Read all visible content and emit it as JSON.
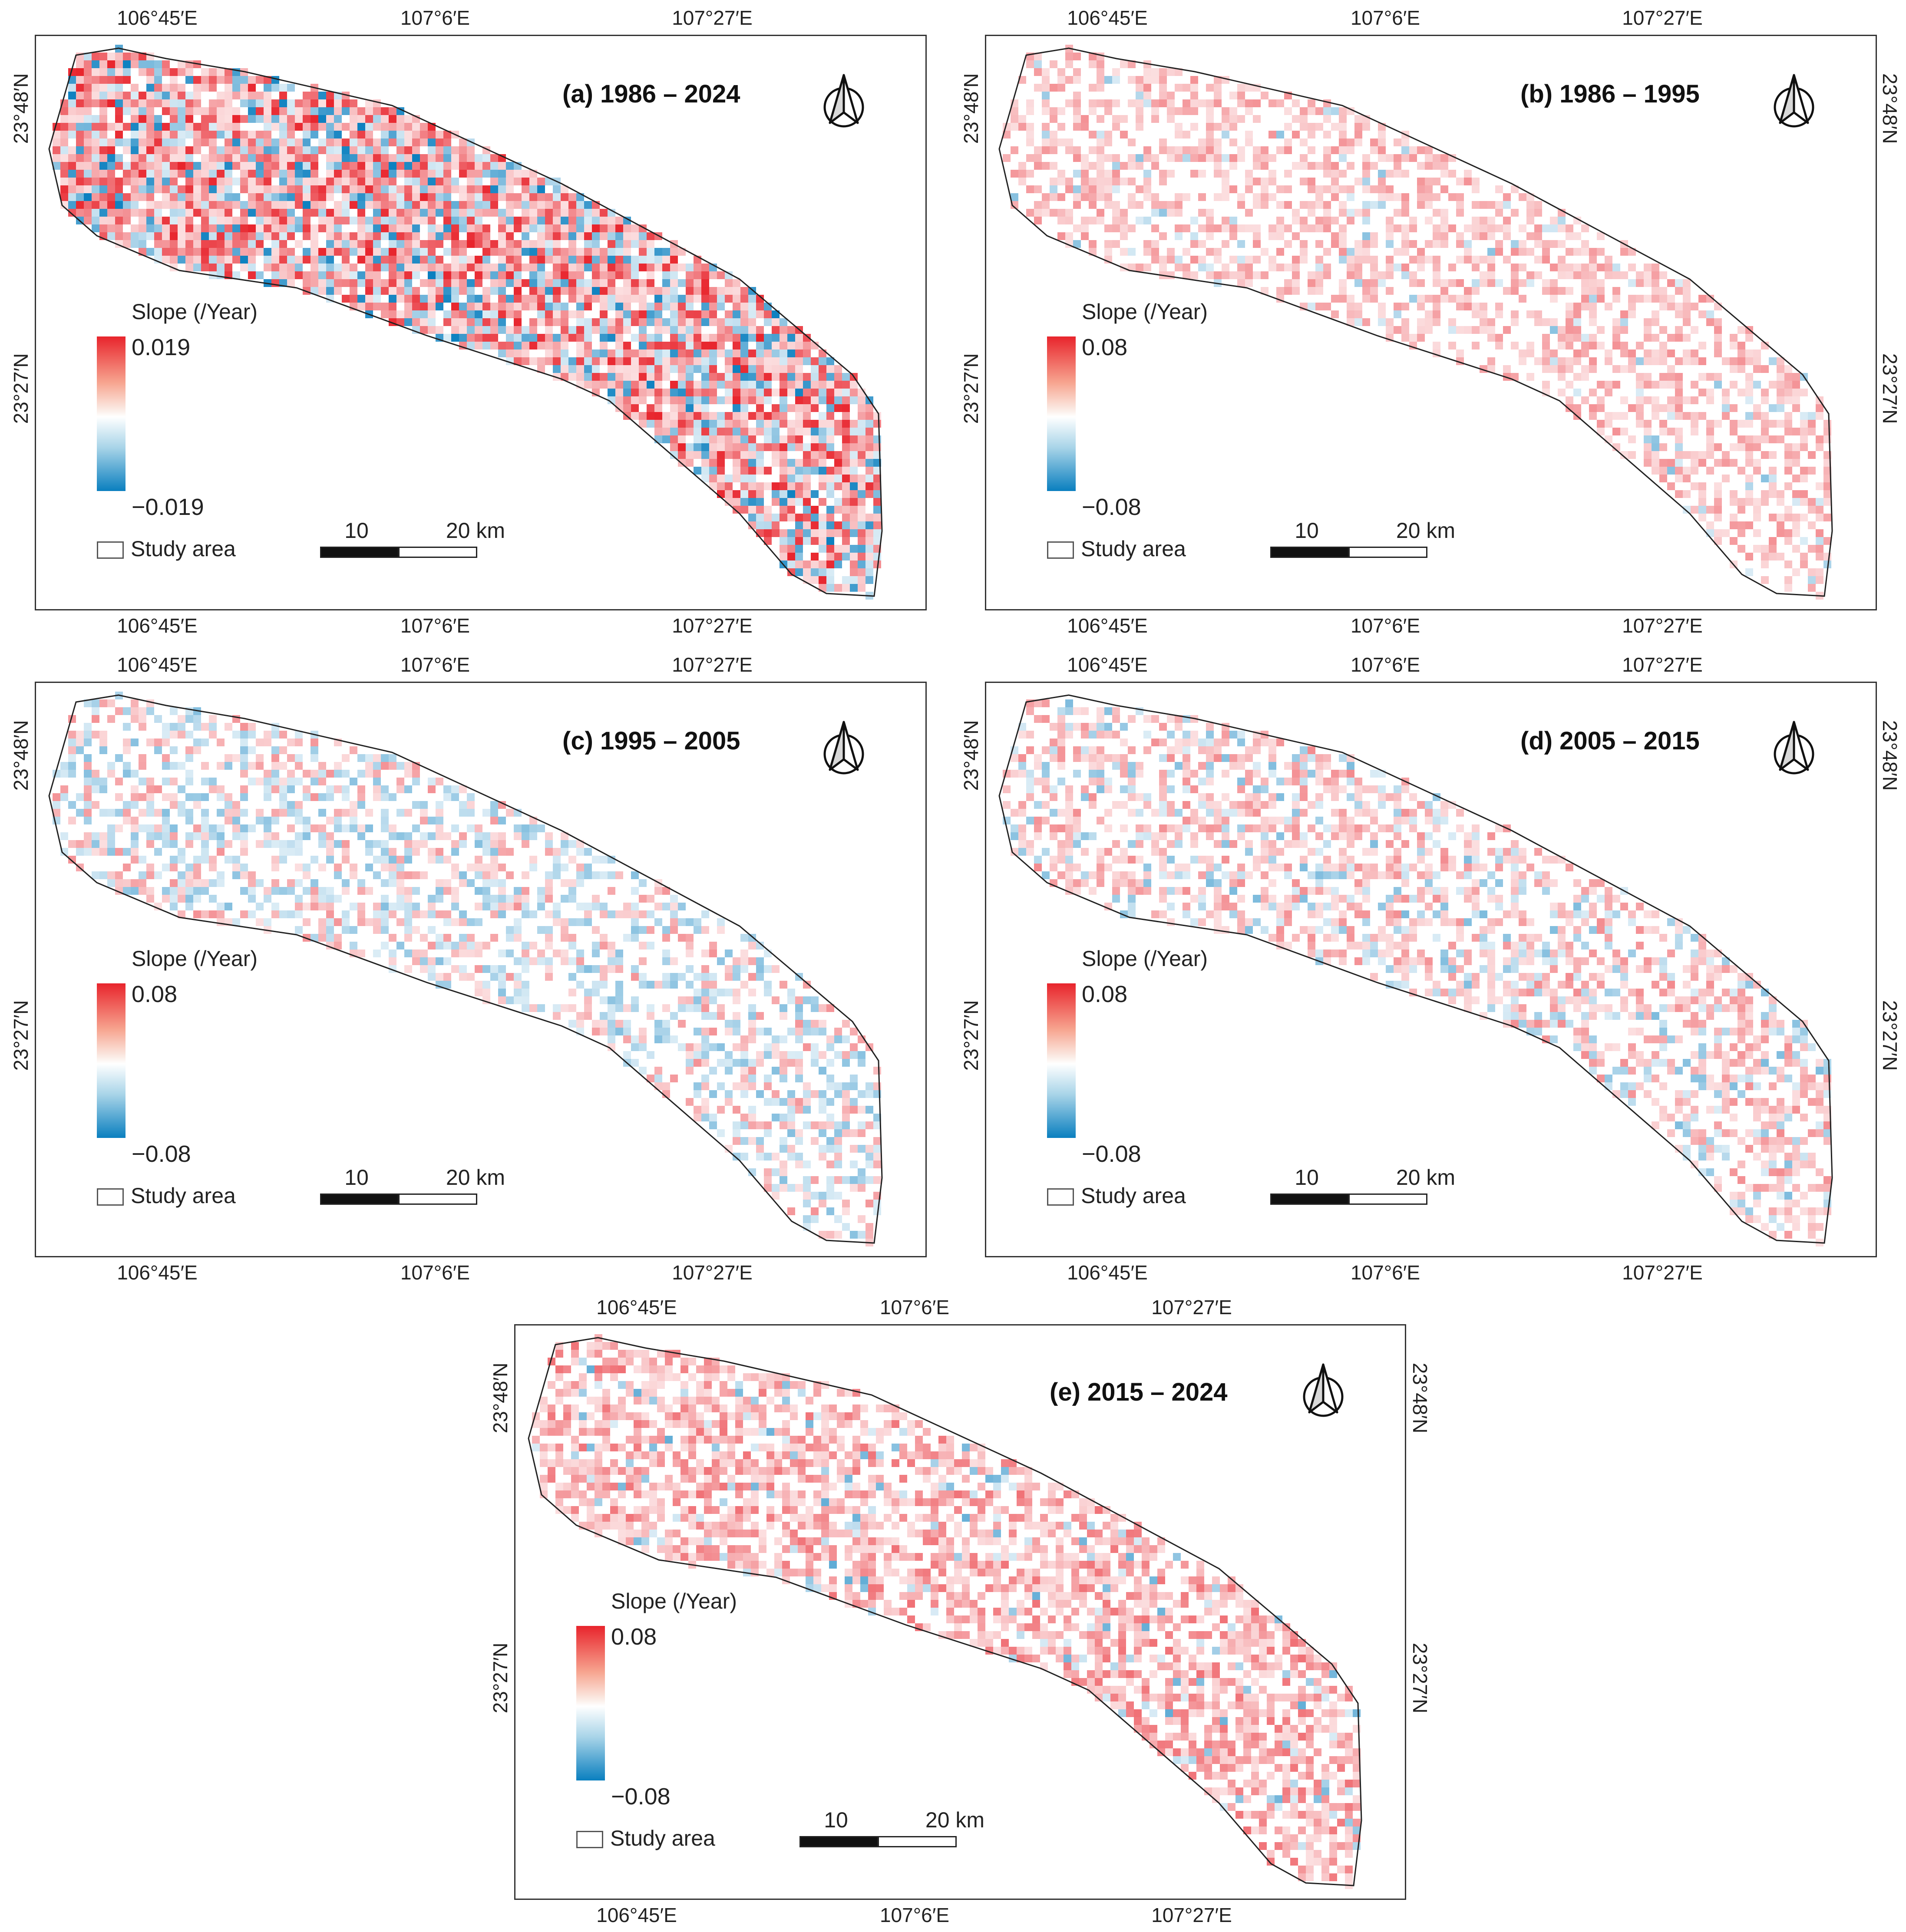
{
  "legend": {
    "title": "Slope (/Year)",
    "study_area_label": "Study area",
    "colors": {
      "high": "#e8242c",
      "mid": "#ffffff",
      "low": "#0a7fbf",
      "outline": "#222222"
    }
  },
  "scale_bar": {
    "mid_label": "10",
    "end_label": "20 km"
  },
  "axes": {
    "lon_labels": [
      "106°45′E",
      "107°6′E",
      "107°27′E"
    ],
    "lat_labels": [
      "23°48′N",
      "23°27′N"
    ]
  },
  "panels": [
    {
      "id": "a",
      "title": "(a) 1986 – 2024",
      "max_label": "0.019",
      "min_label": "−0.019",
      "intensity": 0.85,
      "neg_share": 0.28,
      "north_icon": "north-arrow-icon"
    },
    {
      "id": "b",
      "title": "(b) 1986 – 1995",
      "max_label": "0.08",
      "min_label": "−0.08",
      "intensity": 0.35,
      "neg_share": 0.08,
      "north_icon": "north-arrow-icon"
    },
    {
      "id": "c",
      "title": "(c) 1995 – 2005",
      "max_label": "0.08",
      "min_label": "−0.08",
      "intensity": 0.35,
      "neg_share": 0.55,
      "north_icon": "north-arrow-icon"
    },
    {
      "id": "d",
      "title": "(d) 2005 – 2015",
      "max_label": "0.08",
      "min_label": "−0.08",
      "intensity": 0.38,
      "neg_share": 0.3,
      "north_icon": "north-arrow-icon"
    },
    {
      "id": "e",
      "title": "(e) 2015 – 2024",
      "max_label": "0.08",
      "min_label": "−0.08",
      "intensity": 0.5,
      "neg_share": 0.1,
      "north_icon": "north-arrow-icon"
    }
  ]
}
